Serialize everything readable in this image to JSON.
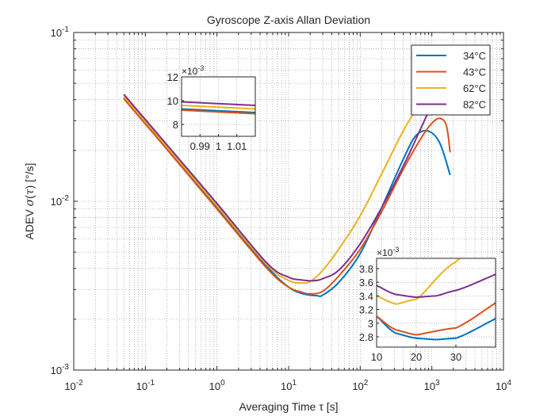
{
  "chart_data": {
    "type": "line",
    "title": "Gyroscope Z-axis Allan Deviation",
    "xlabel": "Averaging Time τ [s]",
    "ylabel_parts": [
      "ADEV ",
      "σ",
      "(",
      "τ",
      ") [°/s]"
    ],
    "xscale": "log",
    "yscale": "log",
    "xlim": [
      0.01,
      10000
    ],
    "ylim": [
      0.001,
      0.1
    ],
    "grid": "major and minor, dotted",
    "legend": "top-right",
    "x_ticks": [
      {
        "base": "10",
        "exp": "-2"
      },
      {
        "base": "10",
        "exp": "-1"
      },
      {
        "base": "10",
        "exp": "0"
      },
      {
        "base": "10",
        "exp": "1"
      },
      {
        "base": "10",
        "exp": "2"
      },
      {
        "base": "10",
        "exp": "3"
      },
      {
        "base": "10",
        "exp": "4"
      }
    ],
    "y_ticks": [
      {
        "base": "10",
        "exp": "-3"
      },
      {
        "base": "10",
        "exp": "-2"
      },
      {
        "base": "10",
        "exp": "-1"
      }
    ],
    "series": [
      {
        "name": "34°C",
        "color": "#0072BD",
        "x": [
          0.05,
          0.2,
          1,
          5,
          10,
          15,
          20,
          25,
          30,
          50,
          100,
          200,
          400,
          600,
          900,
          1300,
          1800
        ],
        "y": [
          0.041,
          0.0206,
          0.0092,
          0.0041,
          0.0031,
          0.00285,
          0.00278,
          0.00276,
          0.00278,
          0.0033,
          0.0049,
          0.0092,
          0.0178,
          0.0245,
          0.026,
          0.022,
          0.0143
        ]
      },
      {
        "name": "43°C",
        "color": "#D95319",
        "x": [
          0.05,
          0.2,
          1,
          5,
          10,
          15,
          20,
          30,
          50,
          100,
          200,
          400,
          700,
          1000,
          1300,
          1600,
          1800
        ],
        "y": [
          0.0405,
          0.0203,
          0.009,
          0.004,
          0.0031,
          0.0029,
          0.00283,
          0.00293,
          0.0036,
          0.0052,
          0.0087,
          0.0155,
          0.0235,
          0.029,
          0.031,
          0.028,
          0.0195
        ]
      },
      {
        "name": "62°C",
        "color": "#EDB120",
        "x": [
          0.05,
          0.2,
          1,
          5,
          10,
          15,
          20,
          30,
          50,
          100,
          200,
          400,
          600,
          700
        ],
        "y": [
          0.0418,
          0.021,
          0.0094,
          0.0042,
          0.0034,
          0.00328,
          0.00335,
          0.0039,
          0.0052,
          0.0082,
          0.0146,
          0.0262,
          0.0345,
          0.036
        ]
      },
      {
        "name": "82°C",
        "color": "#7E2F8E",
        "x": [
          0.05,
          0.2,
          1,
          5,
          10,
          15,
          20,
          25,
          30,
          50,
          100,
          200,
          400,
          800,
          1300,
          1800
        ],
        "y": [
          0.043,
          0.0216,
          0.0097,
          0.0043,
          0.00355,
          0.00342,
          0.00338,
          0.0034,
          0.00348,
          0.0039,
          0.0056,
          0.0092,
          0.0162,
          0.0305,
          0.048,
          0.068
        ]
      }
    ],
    "inset_top": {
      "xlim": [
        0.98,
        1.02
      ],
      "ylim": [
        7,
        12
      ],
      "exponent_label": "×10",
      "exponent_power": "-3",
      "x_ticks": [
        "0.99",
        "1",
        "1.01"
      ],
      "x_tick_values": [
        0.99,
        1.0,
        1.01
      ],
      "y_ticks": [
        "8",
        "10",
        "12"
      ],
      "y_tick_values": [
        8,
        10,
        12
      ],
      "values": {
        "34°C": 9.15,
        "43°C": 9.05,
        "62°C": 9.45,
        "82°C": 9.75
      }
    },
    "inset_bottom": {
      "xlim": [
        10,
        40
      ],
      "ylim": [
        2.65,
        3.95
      ],
      "exponent_label": "×10",
      "exponent_power": "-3",
      "x_ticks": [
        "10",
        "20",
        "30"
      ],
      "x_tick_values": [
        10,
        20,
        30
      ],
      "y_ticks": [
        "2.8",
        "3",
        "3.2",
        "3.4",
        "3.6",
        "3.8"
      ],
      "y_tick_values": [
        2.8,
        3.0,
        3.2,
        3.4,
        3.6,
        3.8
      ]
    }
  }
}
